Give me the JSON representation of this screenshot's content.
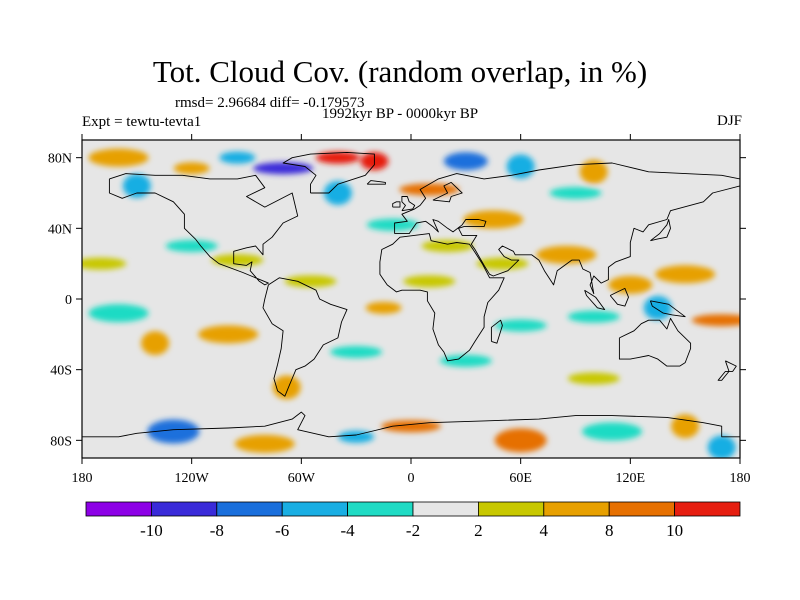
{
  "header": {
    "title": "Tot. Cloud Cov. (random overlap, in %)",
    "stats": "rmsd= 2.96684 diff= -0.179573",
    "period": "1992kyr BP - 0000kyr BP",
    "experiment": "Expt = tewtu-tevta1",
    "season": "DJF"
  },
  "map": {
    "projection": "cylindrical equidistant",
    "lon_range": [
      -180,
      180
    ],
    "lat_range": [
      -90,
      90
    ],
    "ocean_color": "#e6e6e6",
    "coastline_color": "#000000",
    "lat_ticks": [
      {
        "value": 80,
        "label": "80N"
      },
      {
        "value": 40,
        "label": "40N"
      },
      {
        "value": 0,
        "label": "0"
      },
      {
        "value": -40,
        "label": "40S"
      },
      {
        "value": -80,
        "label": "80S"
      }
    ],
    "lon_ticks": [
      {
        "value": -180,
        "label": "180"
      },
      {
        "value": -120,
        "label": "120W"
      },
      {
        "value": -60,
        "label": "60W"
      },
      {
        "value": 0,
        "label": "0"
      },
      {
        "value": 60,
        "label": "60E"
      },
      {
        "value": 120,
        "label": "120E"
      },
      {
        "value": 180,
        "label": "180"
      }
    ]
  },
  "colorbar": {
    "colors": [
      "#8d00e6",
      "#3a2bd9",
      "#1a6fdc",
      "#19aee3",
      "#1fdbc4",
      "#e6e6e6",
      "#c8c800",
      "#e7a000",
      "#e67000",
      "#e61e10"
    ],
    "labels": [
      "-10",
      "-8",
      "-6",
      "-4",
      "-2",
      "2",
      "4",
      "8",
      "10"
    ]
  },
  "chart_data": {
    "type": "heatmap",
    "units": "%",
    "levels": [
      -10,
      -8,
      -6,
      -4,
      -2,
      2,
      4,
      8,
      10
    ],
    "xlim": [
      -180,
      180
    ],
    "ylim": [
      -90,
      90
    ],
    "anomaly_patches": [
      {
        "lon": -40,
        "lat": 80,
        "value": 12
      },
      {
        "lon": -20,
        "lat": 78,
        "value": 10
      },
      {
        "lon": -70,
        "lat": 74,
        "value": -9
      },
      {
        "lon": -95,
        "lat": 80,
        "value": -6
      },
      {
        "lon": -120,
        "lat": 74,
        "value": 6
      },
      {
        "lon": -150,
        "lat": 64,
        "value": -5
      },
      {
        "lon": -160,
        "lat": 80,
        "value": 4
      },
      {
        "lon": 10,
        "lat": 62,
        "value": 9
      },
      {
        "lon": 30,
        "lat": 78,
        "value": -7
      },
      {
        "lon": 60,
        "lat": 75,
        "value": -5
      },
      {
        "lon": 100,
        "lat": 72,
        "value": 5
      },
      {
        "lon": -40,
        "lat": 60,
        "value": -5
      },
      {
        "lon": -10,
        "lat": 42,
        "value": -3
      },
      {
        "lon": 90,
        "lat": 60,
        "value": -3
      },
      {
        "lon": 45,
        "lat": 45,
        "value": 4
      },
      {
        "lon": -170,
        "lat": 20,
        "value": 3
      },
      {
        "lon": -120,
        "lat": 30,
        "value": -3
      },
      {
        "lon": -95,
        "lat": 22,
        "value": 3
      },
      {
        "lon": -55,
        "lat": 10,
        "value": 3
      },
      {
        "lon": -15,
        "lat": -5,
        "value": 6
      },
      {
        "lon": 10,
        "lat": 10,
        "value": 3
      },
      {
        "lon": 20,
        "lat": 30,
        "value": 3
      },
      {
        "lon": 50,
        "lat": 20,
        "value": 3
      },
      {
        "lon": 85,
        "lat": 25,
        "value": 4
      },
      {
        "lon": 120,
        "lat": 8,
        "value": 7
      },
      {
        "lon": 150,
        "lat": 14,
        "value": 4
      },
      {
        "lon": 135,
        "lat": -5,
        "value": -5
      },
      {
        "lon": 170,
        "lat": -12,
        "value": 9
      },
      {
        "lon": 100,
        "lat": -10,
        "value": -3
      },
      {
        "lon": 60,
        "lat": -15,
        "value": -3
      },
      {
        "lon": -160,
        "lat": -8,
        "value": -4
      },
      {
        "lon": -140,
        "lat": -25,
        "value": 5
      },
      {
        "lon": -100,
        "lat": -20,
        "value": 4
      },
      {
        "lon": -30,
        "lat": -30,
        "value": -3
      },
      {
        "lon": 30,
        "lat": -35,
        "value": -3
      },
      {
        "lon": 100,
        "lat": -45,
        "value": 3
      },
      {
        "lon": -68,
        "lat": -50,
        "value": 5
      },
      {
        "lon": -130,
        "lat": -75,
        "value": -8
      },
      {
        "lon": -30,
        "lat": -78,
        "value": -6
      },
      {
        "lon": 0,
        "lat": -72,
        "value": 9
      },
      {
        "lon": 60,
        "lat": -80,
        "value": 8
      },
      {
        "lon": 110,
        "lat": -75,
        "value": -4
      },
      {
        "lon": 150,
        "lat": -72,
        "value": 5
      },
      {
        "lon": -80,
        "lat": -82,
        "value": 4
      },
      {
        "lon": 170,
        "lat": -84,
        "value": -5
      }
    ]
  }
}
